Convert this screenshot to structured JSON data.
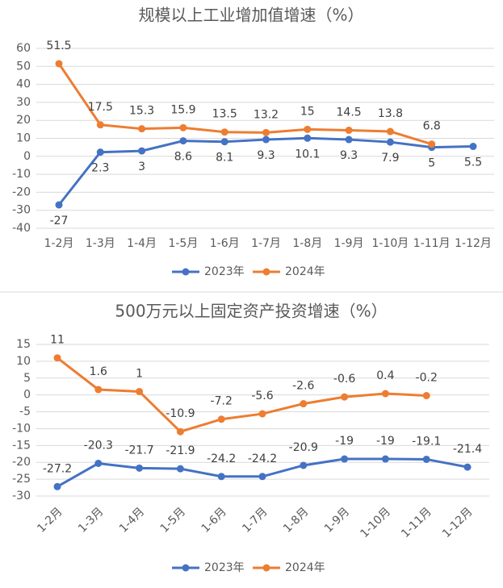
{
  "chart_data": [
    {
      "type": "line",
      "title": "规模以上工业增加值增速（%）",
      "categories": [
        "1-2月",
        "1-3月",
        "1-4月",
        "1-5月",
        "1-6月",
        "1-7月",
        "1-8月",
        "1-9月",
        "1-10月",
        "1-11月",
        "1-12月"
      ],
      "series": [
        {
          "name": "2023年",
          "color": "#4472c4",
          "values": [
            -27,
            2.3,
            3,
            8.6,
            8.1,
            9.3,
            10.1,
            9.3,
            7.9,
            5,
            5.5
          ]
        },
        {
          "name": "2024年",
          "color": "#ed7d31",
          "values": [
            51.5,
            17.5,
            15.3,
            15.9,
            13.5,
            13.2,
            15,
            14.5,
            13.8,
            6.8,
            null
          ]
        }
      ],
      "ylim": [
        -40,
        60
      ],
      "yticks": [
        -40,
        -30,
        -20,
        -10,
        0,
        10,
        20,
        30,
        40,
        50,
        60
      ],
      "grid": true
    },
    {
      "type": "line",
      "title": "500万元以上固定资产投资增速（%）",
      "categories": [
        "1-2月",
        "1-3月",
        "1-4月",
        "1-5月",
        "1-6月",
        "1-7月",
        "1-8月",
        "1-9月",
        "1-10月",
        "1-11月",
        "1-12月"
      ],
      "series": [
        {
          "name": "2023年",
          "color": "#4472c4",
          "values": [
            -27.2,
            -20.3,
            -21.7,
            -21.9,
            -24.2,
            -24.2,
            -20.9,
            -19,
            -19,
            -19.1,
            -21.4
          ]
        },
        {
          "name": "2024年",
          "color": "#ed7d31",
          "values": [
            11,
            1.6,
            1,
            -10.9,
            -7.2,
            -5.6,
            -2.6,
            -0.6,
            0.4,
            -0.2,
            null
          ]
        }
      ],
      "ylim": [
        -30,
        15
      ],
      "yticks": [
        -30,
        -25,
        -20,
        -15,
        -10,
        -5,
        0,
        5,
        10,
        15
      ],
      "grid": true
    }
  ]
}
